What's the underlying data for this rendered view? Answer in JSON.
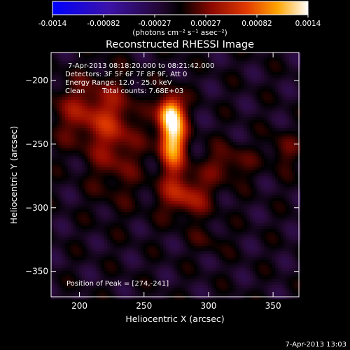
{
  "colorbar": {
    "tick_labels": [
      "-0.0014",
      "-0.00082",
      "-0.00027",
      "0.00027",
      "0.00082",
      "0.0014"
    ],
    "units": "(photons cm⁻² s⁻¹ asec⁻²)"
  },
  "title": "Reconstructed RHESSI Image",
  "annotations": {
    "time_range": "7-Apr-2013 08:18:20.000 to 08:21:42.000",
    "detectors": "Detectors: 3F 5F 6F 7F 8F 9F, Att 0",
    "energy_range": "Energy Range: 12.0 - 25.0 keV",
    "clean": "Clean",
    "total_counts": "Total counts: 7.68E+03",
    "peak": "Position of Peak = [274,-241]"
  },
  "footer_timestamp": "7-Apr-2013 13:03",
  "chart_data": {
    "type": "heatmap",
    "title": "Reconstructed RHESSI Image",
    "xlabel": "Heliocentric X (arcsec)",
    "ylabel": "Heliocentric Y (arcsec)",
    "xlim": [
      178,
      370
    ],
    "ylim": [
      -370,
      -178
    ],
    "x_ticks": [
      200,
      250,
      300,
      350
    ],
    "y_ticks": [
      -200,
      -250,
      -300,
      -350
    ],
    "colorscale_range": [
      -0.0014,
      0.0014
    ],
    "colormap": "blue-purple-black-red-yellow-white",
    "peak_position": [
      274,
      -241
    ],
    "sources": [
      {
        "x": 272,
        "y": -243,
        "sx": 7,
        "sy": 18,
        "amp": 1.0
      },
      {
        "x": 270,
        "y": -225,
        "sx": 6,
        "sy": 8,
        "amp": 0.55
      },
      {
        "x": 282,
        "y": -290,
        "sx": 14,
        "sy": 12,
        "amp": 0.42
      },
      {
        "x": 205,
        "y": -225,
        "sx": 20,
        "sy": 18,
        "amp": 0.32
      },
      {
        "x": 228,
        "y": -250,
        "sx": 14,
        "sy": 30,
        "amp": 0.28
      },
      {
        "x": 315,
        "y": -265,
        "sx": 14,
        "sy": 10,
        "amp": 0.25
      },
      {
        "x": 358,
        "y": -255,
        "sx": 8,
        "sy": 10,
        "amp": 0.22
      },
      {
        "x": 300,
        "y": -325,
        "sx": 10,
        "sy": 8,
        "amp": 0.12
      }
    ]
  }
}
